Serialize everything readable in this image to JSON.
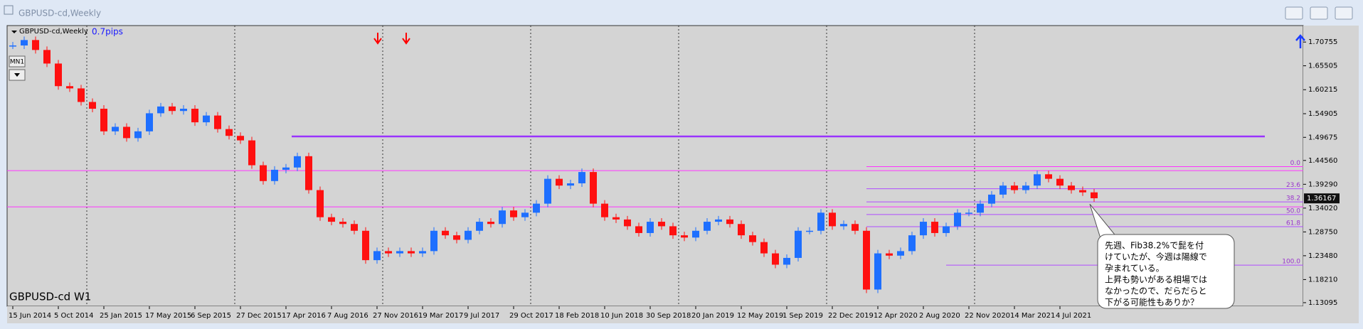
{
  "window": {
    "title": "GBPUSD-cd,Weekly"
  },
  "chart_data": {
    "type": "candlestick",
    "symbol_label": "GBPUSD-cd,Weekly",
    "spread": "0.7pips",
    "timeframe_button": "MN1",
    "bottom_label": "GBPUSD-cd W1",
    "categories": [
      "15 Jun 2014",
      null,
      null,
      null,
      "5 Oct 2014",
      null,
      null,
      null,
      "25 Jan 2015",
      null,
      null,
      null,
      "17 May 2015",
      null,
      null,
      null,
      "6 Sep 2015",
      null,
      null,
      null,
      "27 Dec 2015",
      null,
      null,
      null,
      "17 Apr 2016",
      null,
      null,
      null,
      "7 Aug 2016",
      null,
      null,
      null,
      "27 Nov 2016",
      null,
      null,
      null,
      "19 Mar 2017",
      null,
      null,
      null,
      "9 Jul 2017",
      null,
      null,
      null,
      "29 Oct 2017",
      null,
      null,
      null,
      "18 Feb 2018",
      null,
      null,
      null,
      "10 Jun 2018",
      null,
      null,
      null,
      "30 Sep 2018",
      null,
      null,
      null,
      "20 Jan 2019",
      null,
      null,
      null,
      "12 May 2019",
      null,
      null,
      null,
      "1 Sep 2019",
      null,
      null,
      null,
      "22 Dec 2019",
      null,
      null,
      null,
      "12 Apr 2020",
      null,
      null,
      null,
      "2 Aug 2020",
      null,
      null,
      null,
      "22 Nov 2020",
      null,
      null,
      null,
      "14 Mar 2021",
      null,
      null,
      null,
      "4 Jul 2021",
      null,
      null,
      null
    ],
    "values": [
      1.7,
      1.712,
      1.69,
      1.66,
      1.61,
      1.605,
      1.575,
      1.56,
      1.51,
      1.52,
      1.495,
      1.51,
      1.55,
      1.565,
      1.555,
      1.56,
      1.53,
      1.545,
      1.515,
      1.5,
      1.49,
      1.435,
      1.4,
      1.425,
      1.43,
      1.455,
      1.38,
      1.32,
      1.31,
      1.305,
      1.29,
      1.225,
      1.245,
      1.24,
      1.245,
      1.24,
      1.245,
      1.29,
      1.28,
      1.27,
      1.29,
      1.31,
      1.305,
      1.335,
      1.32,
      1.33,
      1.35,
      1.405,
      1.39,
      1.395,
      1.42,
      1.35,
      1.32,
      1.315,
      1.3,
      1.285,
      1.31,
      1.3,
      1.28,
      1.275,
      1.29,
      1.31,
      1.315,
      1.305,
      1.28,
      1.265,
      1.24,
      1.215,
      1.23,
      1.29,
      1.29,
      1.33,
      1.3,
      1.305,
      1.29,
      1.16,
      1.24,
      1.235,
      1.245,
      1.28,
      1.31,
      1.285,
      1.3,
      1.33,
      1.33,
      1.35,
      1.37,
      1.39,
      1.38,
      1.39,
      1.415,
      1.405,
      1.39,
      1.38,
      1.375,
      1.362
    ],
    "up_color": "#1e6fff",
    "down_color": "#ff1010",
    "ylim": [
      1.123,
      1.744
    ],
    "yticks": [
      1.70755,
      1.65505,
      1.60215,
      1.54905,
      1.49675,
      {
        "value": 1.4456,
        "label": "1.44560"
      },
      {
        "value": 1.3929,
        "label": "1.39290"
      },
      {
        "value": 1.3402,
        "label": "1.34020"
      },
      {
        "value": 1.2875,
        "label": "1.28750"
      },
      {
        "value": 1.2348,
        "label": "1.23480"
      },
      {
        "value": 1.1821,
        "label": "1.18210"
      },
      1.13095
    ],
    "current_price": 1.36167,
    "levels": [
      {
        "value": 1.4987,
        "color": "#9933ff"
      },
      {
        "value": 1.423,
        "color": "#ff33ff"
      },
      {
        "value": 1.343,
        "color": "#ff33ff"
      }
    ],
    "fib_levels": [
      {
        "label": "0.0",
        "value": 1.432
      },
      {
        "label": "23.6",
        "value": 1.383
      },
      {
        "label": "38.2",
        "value": 1.354
      },
      {
        "label": "50.0",
        "value": 1.326
      },
      {
        "label": "61.8",
        "value": 1.299
      },
      {
        "label": "100.0",
        "value": 1.214
      }
    ],
    "note": [
      "先週、Fib38.2%で髭を付",
      "けていたが、今週は陽線で",
      "孕まれている。",
      "上昇も勢いがある相場では",
      "なかったので、だらだらと",
      "下がる可能性もありか？"
    ]
  }
}
